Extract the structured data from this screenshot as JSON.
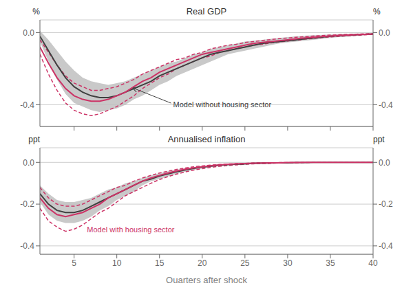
{
  "chart_data": [
    {
      "type": "line",
      "title": "Real GDP",
      "ylabel": "%",
      "y2label": "%",
      "tick_labels": "y",
      "grid": true,
      "x": [
        1,
        2,
        3,
        4,
        5,
        6,
        7,
        8,
        9,
        10,
        11,
        12,
        13,
        14,
        15,
        16,
        17,
        18,
        19,
        20,
        21,
        22,
        23,
        24,
        25,
        26,
        27,
        28,
        29,
        30,
        31,
        32,
        33,
        34,
        35,
        36,
        37,
        38,
        39,
        40
      ],
      "xlim": [
        1,
        40
      ],
      "xticks": [
        5,
        10,
        15,
        20,
        25,
        30,
        35,
        40
      ],
      "ylim": [
        -0.52,
        0.07
      ],
      "yticks": [
        {
          "value": 0.0,
          "label": "0.0"
        },
        -0.4
      ],
      "y2lim": [
        -0.52,
        0.07
      ],
      "y2ticks": [
        {
          "value": 0.0,
          "label": "0.0"
        },
        -0.4
      ],
      "series": [
        {
          "type": "band",
          "color": "#c0c0c0",
          "lower": [
            -0.05,
            -0.16,
            -0.26,
            -0.34,
            -0.39,
            -0.41,
            -0.43,
            -0.44,
            -0.43,
            -0.42,
            -0.4,
            -0.37,
            -0.35,
            -0.32,
            -0.29,
            -0.27,
            -0.24,
            -0.22,
            -0.2,
            -0.18,
            -0.16,
            -0.14,
            -0.12,
            -0.11,
            -0.1,
            -0.09,
            -0.08,
            -0.07,
            -0.06,
            -0.055,
            -0.05,
            -0.045,
            -0.04,
            -0.035,
            -0.03,
            -0.025,
            -0.022,
            -0.018,
            -0.015,
            -0.012
          ],
          "upper": [
            0.01,
            -0.04,
            -0.1,
            -0.16,
            -0.21,
            -0.25,
            -0.27,
            -0.28,
            -0.29,
            -0.28,
            -0.27,
            -0.25,
            -0.23,
            -0.21,
            -0.19,
            -0.17,
            -0.16,
            -0.14,
            -0.12,
            -0.11,
            -0.09,
            -0.08,
            -0.07,
            -0.06,
            -0.05,
            -0.045,
            -0.04,
            -0.035,
            -0.03,
            -0.025,
            -0.02,
            -0.018,
            -0.015,
            -0.013,
            -0.011,
            -0.009,
            -0.008,
            -0.006,
            -0.005,
            -0.004
          ]
        },
        {
          "type": "line",
          "color": "#cc3366",
          "line_style": "dashed",
          "values": [
            -0.04,
            -0.11,
            -0.18,
            -0.24,
            -0.28,
            -0.3,
            -0.32,
            -0.32,
            -0.31,
            -0.3,
            -0.28,
            -0.26,
            -0.23,
            -0.21,
            -0.19,
            -0.17,
            -0.15,
            -0.14,
            -0.12,
            -0.11,
            -0.09,
            -0.08,
            -0.07,
            -0.065,
            -0.055,
            -0.05,
            -0.044,
            -0.039,
            -0.034,
            -0.03,
            -0.026,
            -0.023,
            -0.019,
            -0.017,
            -0.014,
            -0.012,
            -0.01,
            -0.009,
            -0.007,
            -0.006
          ]
        },
        {
          "type": "line",
          "color": "#cc3366",
          "line_style": "dashed",
          "values": [
            -0.12,
            -0.23,
            -0.32,
            -0.39,
            -0.43,
            -0.45,
            -0.46,
            -0.45,
            -0.43,
            -0.41,
            -0.38,
            -0.35,
            -0.31,
            -0.28,
            -0.25,
            -0.23,
            -0.2,
            -0.18,
            -0.16,
            -0.14,
            -0.13,
            -0.11,
            -0.1,
            -0.09,
            -0.08,
            -0.07,
            -0.065,
            -0.058,
            -0.052,
            -0.047,
            -0.042,
            -0.037,
            -0.033,
            -0.028,
            -0.024,
            -0.021,
            -0.018,
            -0.016,
            -0.013,
            -0.01
          ]
        },
        {
          "type": "line",
          "color": "#404040",
          "line_style": "solid",
          "values": [
            -0.02,
            -0.1,
            -0.18,
            -0.25,
            -0.3,
            -0.33,
            -0.35,
            -0.36,
            -0.36,
            -0.35,
            -0.33,
            -0.31,
            -0.29,
            -0.27,
            -0.24,
            -0.22,
            -0.2,
            -0.18,
            -0.16,
            -0.14,
            -0.12,
            -0.11,
            -0.1,
            -0.09,
            -0.08,
            -0.07,
            -0.06,
            -0.055,
            -0.05,
            -0.045,
            -0.04,
            -0.035,
            -0.03,
            -0.025,
            -0.02,
            -0.018,
            -0.015,
            -0.012,
            -0.01,
            -0.008
          ]
        },
        {
          "type": "line",
          "color": "#cc3366",
          "line_style": "solid",
          "values": [
            -0.08,
            -0.17,
            -0.25,
            -0.31,
            -0.35,
            -0.37,
            -0.38,
            -0.38,
            -0.37,
            -0.35,
            -0.33,
            -0.3,
            -0.27,
            -0.25,
            -0.22,
            -0.2,
            -0.18,
            -0.16,
            -0.14,
            -0.12,
            -0.11,
            -0.1,
            -0.09,
            -0.08,
            -0.07,
            -0.06,
            -0.055,
            -0.05,
            -0.045,
            -0.04,
            -0.035,
            -0.03,
            -0.026,
            -0.022,
            -0.019,
            -0.016,
            -0.014,
            -0.012,
            -0.01,
            -0.008
          ]
        }
      ],
      "annotations": [
        {
          "text": "Model without housing sector",
          "color": "#404040"
        }
      ]
    },
    {
      "type": "line",
      "title": "Annualised inflation",
      "ylabel": "ppt",
      "y2label": "ppt",
      "xlabel": "Quarters after shock",
      "grid": true,
      "x": [
        1,
        2,
        3,
        4,
        5,
        6,
        7,
        8,
        9,
        10,
        11,
        12,
        13,
        14,
        15,
        16,
        17,
        18,
        19,
        20,
        21,
        22,
        23,
        24,
        25,
        26,
        27,
        28,
        29,
        30,
        31,
        32,
        33,
        34,
        35,
        36,
        37,
        38,
        39,
        40
      ],
      "xlim": [
        1,
        40
      ],
      "xticks": [
        5,
        10,
        15,
        20,
        25,
        30,
        35,
        40
      ],
      "ylim": [
        -0.44,
        0.07
      ],
      "yticks": [
        {
          "value": 0.0,
          "label": "0.0"
        },
        -0.2,
        -0.4
      ],
      "y2lim": [
        -0.44,
        0.07
      ],
      "y2ticks": [
        {
          "value": 0.0,
          "label": "0.0"
        },
        -0.2,
        -0.4
      ],
      "series": [
        {
          "type": "band",
          "color": "#c0c0c0",
          "lower": [
            -0.19,
            -0.25,
            -0.28,
            -0.29,
            -0.29,
            -0.28,
            -0.26,
            -0.23,
            -0.21,
            -0.18,
            -0.16,
            -0.14,
            -0.11,
            -0.09,
            -0.08,
            -0.067,
            -0.055,
            -0.044,
            -0.036,
            -0.029,
            -0.023,
            -0.018,
            -0.014,
            -0.011,
            -0.009,
            -0.007,
            -0.005,
            -0.004,
            -0.003,
            -0.002,
            -0.002,
            -0.001,
            -0.001,
            0.0,
            0.0,
            0.0,
            0.0,
            0.0,
            0.0,
            0.0
          ],
          "upper": [
            -0.11,
            -0.15,
            -0.18,
            -0.19,
            -0.19,
            -0.18,
            -0.17,
            -0.15,
            -0.13,
            -0.12,
            -0.1,
            -0.09,
            -0.075,
            -0.062,
            -0.052,
            -0.043,
            -0.035,
            -0.028,
            -0.022,
            -0.017,
            -0.013,
            -0.01,
            -0.008,
            -0.006,
            -0.005,
            -0.004,
            -0.003,
            -0.002,
            -0.001,
            -0.001,
            0.0,
            0.0,
            0.0,
            0.0,
            0.0,
            0.0,
            0.0,
            0.0,
            0.0,
            0.0
          ]
        },
        {
          "type": "line",
          "color": "#cc3366",
          "line_style": "dashed",
          "values": [
            -0.12,
            -0.17,
            -0.2,
            -0.21,
            -0.21,
            -0.2,
            -0.18,
            -0.16,
            -0.14,
            -0.12,
            -0.11,
            -0.09,
            -0.075,
            -0.062,
            -0.051,
            -0.042,
            -0.034,
            -0.027,
            -0.021,
            -0.017,
            -0.013,
            -0.01,
            -0.008,
            -0.006,
            -0.005,
            -0.003,
            -0.002,
            -0.002,
            -0.001,
            -0.001,
            0.0,
            0.0,
            0.0,
            0.0,
            0.0,
            0.0,
            0.0,
            0.0,
            0.0,
            0.0
          ]
        },
        {
          "type": "line",
          "color": "#cc3366",
          "line_style": "dashed",
          "values": [
            -0.22,
            -0.28,
            -0.31,
            -0.33,
            -0.32,
            -0.3,
            -0.27,
            -0.24,
            -0.22,
            -0.19,
            -0.16,
            -0.14,
            -0.12,
            -0.1,
            -0.082,
            -0.068,
            -0.056,
            -0.046,
            -0.037,
            -0.03,
            -0.024,
            -0.019,
            -0.015,
            -0.012,
            -0.009,
            -0.007,
            -0.006,
            -0.005,
            -0.003,
            -0.002,
            -0.002,
            -0.001,
            0.0,
            0.0,
            0.0,
            0.0,
            0.0,
            0.0,
            0.0,
            0.0
          ]
        },
        {
          "type": "line",
          "color": "#404040",
          "line_style": "solid",
          "values": [
            -0.15,
            -0.2,
            -0.23,
            -0.24,
            -0.24,
            -0.23,
            -0.21,
            -0.19,
            -0.17,
            -0.15,
            -0.13,
            -0.11,
            -0.09,
            -0.08,
            -0.065,
            -0.055,
            -0.045,
            -0.036,
            -0.029,
            -0.023,
            -0.018,
            -0.014,
            -0.011,
            -0.009,
            -0.007,
            -0.005,
            -0.004,
            -0.003,
            -0.002,
            -0.002,
            -0.001,
            -0.001,
            0.0,
            0.0,
            0.0,
            0.0,
            0.0,
            0.0,
            0.0,
            0.0
          ]
        },
        {
          "type": "line",
          "color": "#cc3366",
          "line_style": "solid",
          "values": [
            -0.17,
            -0.22,
            -0.25,
            -0.26,
            -0.25,
            -0.24,
            -0.22,
            -0.2,
            -0.17,
            -0.15,
            -0.13,
            -0.11,
            -0.09,
            -0.075,
            -0.062,
            -0.051,
            -0.041,
            -0.033,
            -0.026,
            -0.021,
            -0.016,
            -0.012,
            -0.009,
            -0.007,
            -0.006,
            -0.004,
            -0.003,
            -0.002,
            -0.002,
            -0.001,
            -0.001,
            0.0,
            0.0,
            0.0,
            0.0,
            0.0,
            0.0,
            0.0,
            0.0,
            0.0
          ]
        }
      ],
      "annotations": [
        {
          "text": "Model with housing sector",
          "color": "#cc3366"
        }
      ]
    }
  ]
}
